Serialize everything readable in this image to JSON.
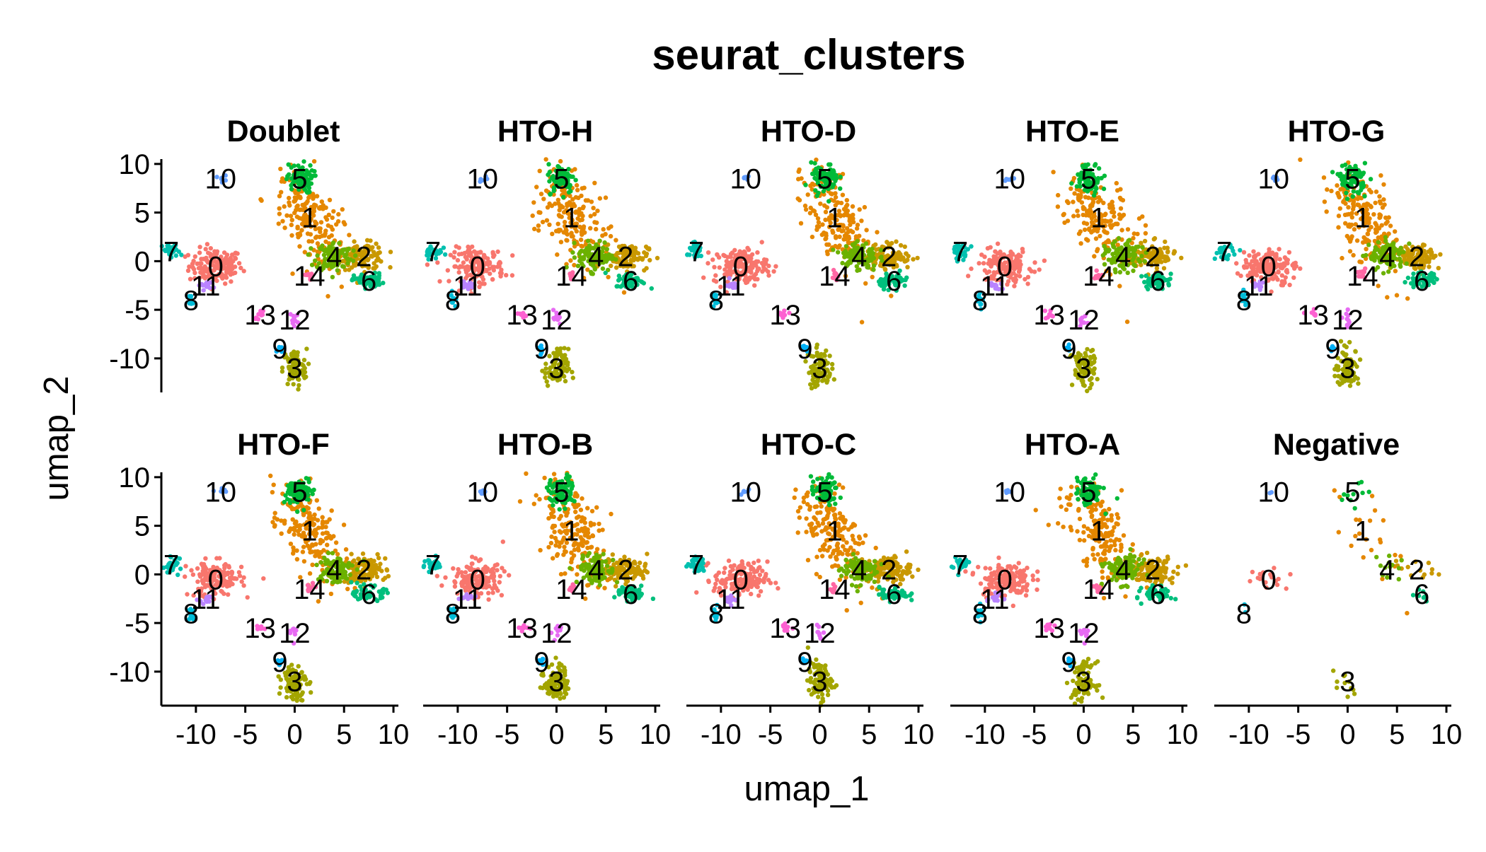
{
  "chart_data": {
    "type": "scatter",
    "title": "seurat_clusters",
    "xlabel": "umap_1",
    "ylabel": "umap_2",
    "xlim": [
      -13.5,
      10.5
    ],
    "ylim": [
      -13.5,
      10.5
    ],
    "xticks": [
      -10,
      -5,
      0,
      5,
      10
    ],
    "xtick_labels": [
      "-10",
      "-5",
      "0",
      "5",
      "10"
    ],
    "yticks": [
      -10,
      -5,
      0,
      5,
      10
    ],
    "ytick_labels": [
      "-10",
      "-5",
      "0",
      "5",
      "10"
    ],
    "layout": {
      "rows": 2,
      "cols": 5
    },
    "legend": "none",
    "grid": false,
    "panels": [
      {
        "name": "Doublet",
        "labels": [
          "0",
          "1",
          "2",
          "3",
          "4",
          "5",
          "6",
          "7",
          "8",
          "9",
          "10",
          "11",
          "12",
          "13",
          "14"
        ]
      },
      {
        "name": "HTO-H",
        "labels": [
          "0",
          "1",
          "2",
          "3",
          "4",
          "5",
          "6",
          "7",
          "8",
          "9",
          "10",
          "11",
          "12",
          "13",
          "14"
        ]
      },
      {
        "name": "HTO-D",
        "labels": [
          "0",
          "1",
          "2",
          "3",
          "4",
          "5",
          "6",
          "7",
          "8",
          "9",
          "10",
          "11",
          "13",
          "14"
        ]
      },
      {
        "name": "HTO-E",
        "labels": [
          "0",
          "1",
          "2",
          "3",
          "4",
          "5",
          "6",
          "7",
          "8",
          "9",
          "10",
          "11",
          "12",
          "13",
          "14"
        ]
      },
      {
        "name": "HTO-G",
        "labels": [
          "0",
          "1",
          "2",
          "3",
          "4",
          "5",
          "6",
          "7",
          "8",
          "9",
          "10",
          "11",
          "12",
          "13",
          "14"
        ]
      },
      {
        "name": "HTO-F",
        "labels": [
          "0",
          "1",
          "2",
          "3",
          "4",
          "5",
          "6",
          "7",
          "8",
          "9",
          "10",
          "11",
          "12",
          "13",
          "14"
        ]
      },
      {
        "name": "HTO-B",
        "labels": [
          "0",
          "1",
          "2",
          "3",
          "4",
          "5",
          "6",
          "7",
          "8",
          "9",
          "10",
          "11",
          "12",
          "13",
          "14"
        ]
      },
      {
        "name": "HTO-C",
        "labels": [
          "0",
          "1",
          "2",
          "3",
          "4",
          "5",
          "6",
          "7",
          "8",
          "9",
          "10",
          "11",
          "12",
          "13",
          "14"
        ]
      },
      {
        "name": "HTO-A",
        "labels": [
          "0",
          "1",
          "2",
          "3",
          "4",
          "5",
          "6",
          "7",
          "8",
          "9",
          "10",
          "11",
          "12",
          "13",
          "14"
        ]
      },
      {
        "name": "Negative",
        "labels": [
          "0",
          "1",
          "2",
          "3",
          "4",
          "5",
          "6",
          "8",
          "10"
        ]
      }
    ],
    "clusters": [
      {
        "id": "0",
        "color": "#F8766D",
        "center": [
          -8,
          -0.5
        ],
        "spread": [
          1.8,
          1.2
        ]
      },
      {
        "id": "1",
        "color": "#E58700",
        "center": [
          1.5,
          4.5
        ],
        "spread": [
          1.5,
          2.5
        ]
      },
      {
        "id": "2",
        "color": "#C99800",
        "center": [
          7,
          0.5
        ],
        "spread": [
          1.5,
          0.9
        ]
      },
      {
        "id": "3",
        "color": "#A3A500",
        "center": [
          0,
          -11
        ],
        "spread": [
          0.8,
          1.3
        ]
      },
      {
        "id": "4",
        "color": "#6BB100",
        "center": [
          4,
          0.5
        ],
        "spread": [
          1.2,
          1.0
        ]
      },
      {
        "id": "5",
        "color": "#00BA38",
        "center": [
          0.5,
          8.5
        ],
        "spread": [
          0.9,
          1.0
        ]
      },
      {
        "id": "6",
        "color": "#00BF7D",
        "center": [
          7.5,
          -2
        ],
        "spread": [
          1.0,
          0.5
        ]
      },
      {
        "id": "7",
        "color": "#00C0AF",
        "center": [
          -12.5,
          1
        ],
        "spread": [
          0.6,
          0.5
        ]
      },
      {
        "id": "8",
        "color": "#00BCD8",
        "center": [
          -10.5,
          -4
        ],
        "spread": [
          0.2,
          0.5
        ]
      },
      {
        "id": "9",
        "color": "#00B0F6",
        "center": [
          -1.5,
          -9
        ],
        "spread": [
          0.2,
          0.3
        ]
      },
      {
        "id": "10",
        "color": "#619CFF",
        "center": [
          -7.5,
          8.5
        ],
        "spread": [
          0.4,
          0.2
        ]
      },
      {
        "id": "11",
        "color": "#B983FF",
        "center": [
          -9,
          -2.5
        ],
        "spread": [
          0.5,
          0.3
        ]
      },
      {
        "id": "12",
        "color": "#E76BF3",
        "center": [
          0,
          -6
        ],
        "spread": [
          0.3,
          0.6
        ]
      },
      {
        "id": "13",
        "color": "#FD61D1",
        "center": [
          -3.5,
          -5.5
        ],
        "spread": [
          0.4,
          0.3
        ]
      },
      {
        "id": "14",
        "color": "#FF67A4",
        "center": [
          1.5,
          -1.5
        ],
        "spread": [
          0.3,
          0.3
        ]
      }
    ]
  }
}
